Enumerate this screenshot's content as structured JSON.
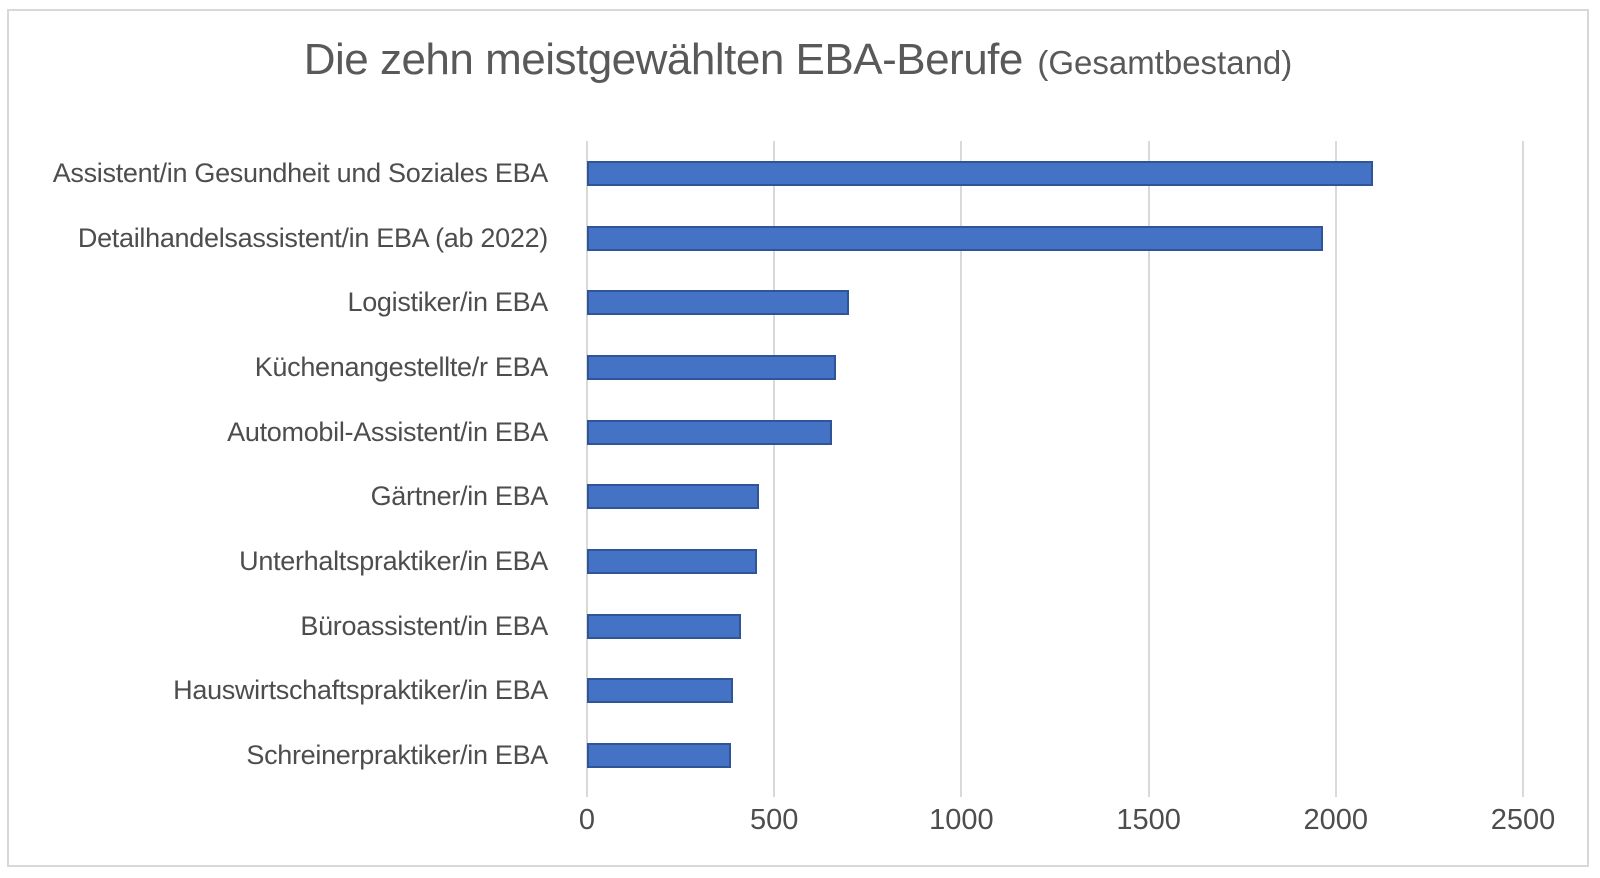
{
  "chart_data": {
    "type": "bar",
    "orientation": "horizontal",
    "title": "Die zehn meistgewählten EBA-Berufe",
    "title_suffix": "(Gesamtbestand)",
    "categories": [
      "Assistent/in Gesundheit und Soziales EBA",
      "Detailhandelsassistent/in EBA (ab 2022)",
      "Logistiker/in EBA",
      "Küchenangestellte/r EBA",
      "Automobil-Assistent/in EBA",
      "Gärtner/in EBA",
      "Unterhaltspraktiker/in EBA",
      "Büroassistent/in EBA",
      "Hauswirtschaftspraktiker/in EBA",
      "Schreinerpraktiker/in EBA"
    ],
    "values": [
      2100,
      1965,
      700,
      665,
      655,
      460,
      455,
      410,
      390,
      385
    ],
    "xlabel": "",
    "ylabel": "",
    "xlim": [
      0,
      2500
    ],
    "x_ticks": [
      0,
      500,
      1000,
      1500,
      2000,
      2500
    ],
    "grid": true,
    "legend": "none",
    "bar_color": "#4472C4",
    "bar_border_color": "#2F5597",
    "gridline_color": "#D9D9D9",
    "title_color": "#595959",
    "label_color": "#4d4d4d"
  }
}
